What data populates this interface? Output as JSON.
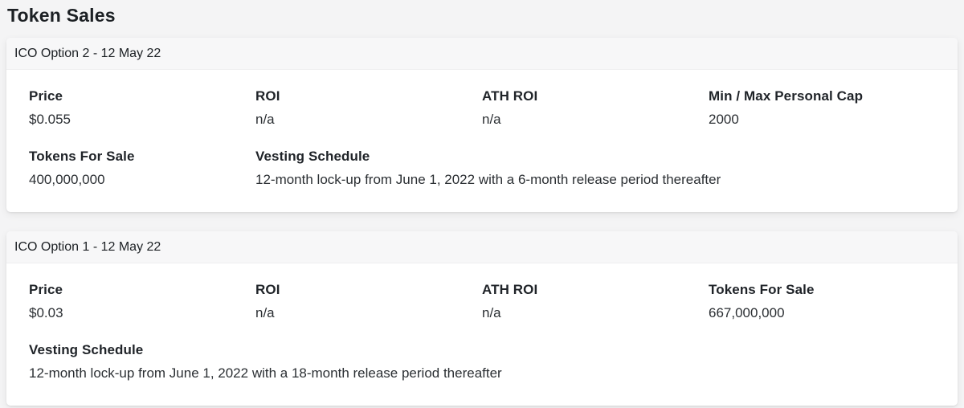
{
  "page": {
    "title": "Token Sales"
  },
  "colors": {
    "page_background": "#f4f4f5",
    "card_background": "#ffffff",
    "card_header_background": "#f7f7f8",
    "text_primary": "#1c2024",
    "text_value": "#2b2f33"
  },
  "cards": [
    {
      "header": "ICO Option 2 - 12 May 22",
      "fields": [
        {
          "label": "Price",
          "value": "$0.055"
        },
        {
          "label": "ROI",
          "value": "n/a"
        },
        {
          "label": "ATH ROI",
          "value": "n/a"
        },
        {
          "label": "Min / Max Personal Cap",
          "value": "2000"
        },
        {
          "label": "Tokens For Sale",
          "value": "400,000,000"
        },
        {
          "label": "Vesting Schedule",
          "value": "12-month lock-up from June 1, 2022 with a 6-month release period thereafter"
        }
      ]
    },
    {
      "header": "ICO Option 1 - 12 May 22",
      "fields": [
        {
          "label": "Price",
          "value": "$0.03"
        },
        {
          "label": "ROI",
          "value": "n/a"
        },
        {
          "label": "ATH ROI",
          "value": "n/a"
        },
        {
          "label": "Tokens For Sale",
          "value": "667,000,000"
        },
        {
          "label": "Vesting Schedule",
          "value": "12-month lock-up from June 1, 2022 with a 18-month release period thereafter"
        }
      ]
    }
  ]
}
